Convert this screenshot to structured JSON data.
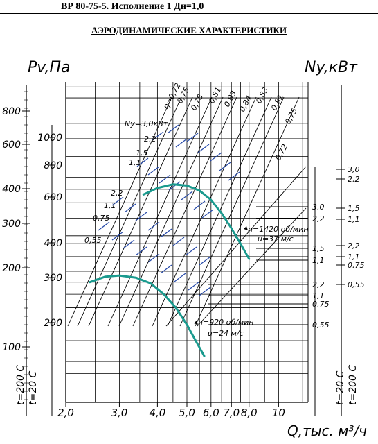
{
  "header": {
    "title": "ВР 80-75-5. Исполнение 1 Дн=1,0"
  },
  "subtitle": "АЭРОДИНАМИЧЕСКИЕ ХАРАКТЕРИСТИКИ",
  "colors": {
    "curve": "#1a9a8e",
    "blue": "#2448a8",
    "line": "#000000"
  },
  "chart_data": {
    "type": "line",
    "title": "АЭРОДИНАМИЧЕСКИЕ ХАРАКТЕРИСТИКИ",
    "xlabel": "Q,тыс. м³/ч",
    "ylabel_left": "Pv,Па",
    "ylabel_right": "Ny,кВт",
    "x_scale": "log",
    "y_scale": "log",
    "x_ticks": [
      "2,0",
      "3,0",
      "4,0",
      "5,0",
      "6,0",
      "7,0",
      "8,0",
      "10"
    ],
    "y_ticks_left_outer": [
      "800",
      "600",
      "400",
      "300",
      "200",
      "100"
    ],
    "y_ticks_left_inner": [
      "1000",
      "800",
      "600",
      "400",
      "300",
      "200"
    ],
    "temperature_labels": [
      "t=200 C",
      "t=20 C"
    ],
    "efficiency_labels": [
      "η=0,72",
      "0,75",
      "0,78",
      "0,81",
      "0,83",
      "0,84",
      "0,83",
      "0,81",
      "0,75",
      "0,72"
    ],
    "power_labels_upper": [
      "Ny=3,0кВт",
      "2,2",
      "1,5",
      "1,1"
    ],
    "power_labels_lower": [
      "2,2",
      "1,1",
      "0,75",
      "0,55"
    ],
    "right_scale_1": [
      "3,0",
      "2,2",
      "1,5",
      "1,1"
    ],
    "right_scale_2": [
      "3,0",
      "2,2",
      "1,5",
      "1,1"
    ],
    "right_scale_3": [
      "1,5",
      "1,1",
      "2,2",
      "1,1",
      "0,75",
      "0,55"
    ],
    "right_scale_4": [
      "2,2",
      "1,1",
      "0,75",
      "0,55"
    ],
    "series": [
      {
        "name": "n=1420 об/мин",
        "annotation": "u=37 м/с",
        "x": [
          3.6,
          4.0,
          4.5,
          5.0,
          5.5,
          6.0,
          6.5,
          7.0,
          7.5,
          8.0
        ],
        "y": [
          430,
          455,
          470,
          465,
          445,
          410,
          365,
          320,
          280,
          245
        ]
      },
      {
        "name": "n=920 об/мин",
        "annotation": "u=24 м/с",
        "x": [
          2.4,
          2.7,
          3.0,
          3.4,
          3.8,
          4.2,
          4.6,
          5.0,
          5.3,
          5.7
        ],
        "y": [
          200,
          210,
          212,
          208,
          198,
          180,
          160,
          138,
          122,
          105
        ]
      }
    ]
  }
}
